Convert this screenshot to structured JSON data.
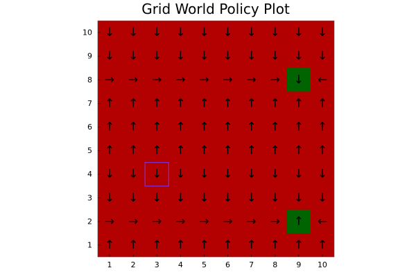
{
  "chart_data": {
    "type": "heatmap",
    "title": "Grid World Policy Plot",
    "xlabel": "",
    "ylabel": "",
    "xlim": [
      0.5,
      10.5
    ],
    "ylim": [
      0.5,
      10.5
    ],
    "xticks": [
      "1",
      "2",
      "3",
      "4",
      "5",
      "6",
      "7",
      "8",
      "9",
      "10"
    ],
    "yticks": [
      "1",
      "2",
      "3",
      "4",
      "5",
      "6",
      "7",
      "8",
      "9",
      "10"
    ],
    "grid": false,
    "colors": {
      "background_cell": "#B30000",
      "goal_cell": "#006400",
      "agent_marker": "#7B2FD0"
    },
    "goal_cells": [
      {
        "x": 9,
        "y": 8
      },
      {
        "x": 9,
        "y": 2
      }
    ],
    "agent_cell": {
      "x": 3,
      "y": 4
    },
    "policy_rows": [
      {
        "y": 10,
        "arrows": [
          "↓",
          "↓",
          "↓",
          "↓",
          "↓",
          "↓",
          "↓",
          "↓",
          "↓",
          "↓"
        ]
      },
      {
        "y": 9,
        "arrows": [
          "↓",
          "↓",
          "↓",
          "↓",
          "↓",
          "↓",
          "↓",
          "↓",
          "↓",
          "↓"
        ]
      },
      {
        "y": 8,
        "arrows": [
          "→",
          "→",
          "→",
          "→",
          "→",
          "→",
          "→",
          "→",
          "↓",
          "←"
        ]
      },
      {
        "y": 7,
        "arrows": [
          "↑",
          "↑",
          "↑",
          "↑",
          "↑",
          "↑",
          "↑",
          "↑",
          "↑",
          "↑"
        ]
      },
      {
        "y": 6,
        "arrows": [
          "↑",
          "↑",
          "↑",
          "↑",
          "↑",
          "↑",
          "↑",
          "↑",
          "↑",
          "↑"
        ]
      },
      {
        "y": 5,
        "arrows": [
          "↑",
          "↑",
          "↑",
          "↑",
          "↑",
          "↑",
          "↑",
          "↑",
          "↑",
          "↑"
        ]
      },
      {
        "y": 4,
        "arrows": [
          "↓",
          "↓",
          "↓",
          "↓",
          "↓",
          "↓",
          "↓",
          "↓",
          "↓",
          "↓"
        ]
      },
      {
        "y": 3,
        "arrows": [
          "↓",
          "↓",
          "↓",
          "↓",
          "↓",
          "↓",
          "↓",
          "↓",
          "↓",
          "↓"
        ]
      },
      {
        "y": 2,
        "arrows": [
          "→",
          "→",
          "→",
          "→",
          "→",
          "→",
          "→",
          "→",
          "↑",
          "←"
        ]
      },
      {
        "y": 1,
        "arrows": [
          "↑",
          "↑",
          "↑",
          "↑",
          "↑",
          "↑",
          "↑",
          "↑",
          "↑",
          "↑"
        ]
      }
    ]
  }
}
